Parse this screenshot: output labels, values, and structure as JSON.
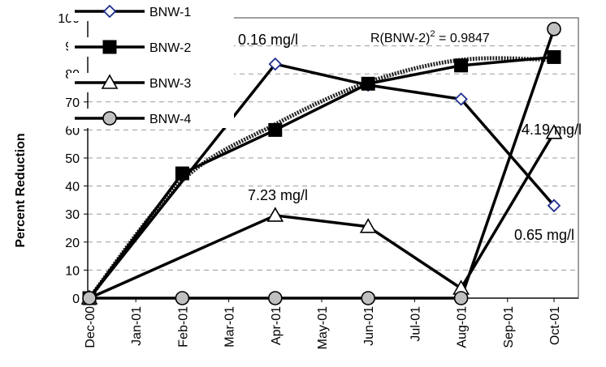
{
  "chart_data": {
    "type": "line",
    "title": "",
    "xlabel": "",
    "ylabel": "Percent Reduction",
    "x_ticks": [
      "Dec-00",
      "Jan-01",
      "Feb-01",
      "Mar-01",
      "Apr-01",
      "May-01",
      "Jun-01",
      "Jul-01",
      "Aug-01",
      "Sep-01",
      "Oct-01"
    ],
    "y_ticks": [
      0,
      10,
      20,
      30,
      40,
      50,
      60,
      70,
      80,
      90,
      100
    ],
    "ylim": [
      0,
      100
    ],
    "grid": "horizontal dashed",
    "legend_position": "top-left",
    "series": [
      {
        "name": "BNW-1",
        "marker": "diamond",
        "color": "#1f2f8f",
        "x": [
          "Dec-00",
          "Apr-01",
          "Jun-01",
          "Aug-01",
          "Oct-01"
        ],
        "values": [
          0,
          83.5,
          76,
          71,
          33
        ]
      },
      {
        "name": "BNW-2",
        "marker": "square",
        "color": "#000000",
        "x": [
          "Dec-00",
          "Feb-01",
          "Apr-01",
          "Jun-01",
          "Aug-01",
          "Oct-01"
        ],
        "values": [
          0,
          44.5,
          60,
          76.5,
          83,
          86
        ]
      },
      {
        "name": "BNW-3",
        "marker": "triangle",
        "color": "#000000",
        "x": [
          "Dec-00",
          "Apr-01",
          "Jun-01",
          "Aug-01",
          "Oct-01"
        ],
        "values": [
          0,
          29.5,
          25.5,
          3.5,
          59
        ]
      },
      {
        "name": "BNW-4",
        "marker": "circle",
        "color": "#999999",
        "x": [
          "Dec-00",
          "Feb-01",
          "Apr-01",
          "Jun-01",
          "Aug-01",
          "Oct-01"
        ],
        "values": [
          0,
          0,
          0,
          0,
          0,
          96
        ]
      }
    ],
    "trendline": {
      "series": "BNW-2",
      "type": "polynomial",
      "x": [
        "Dec-00",
        "Feb-01",
        "Apr-01",
        "Jun-01",
        "Aug-01",
        "Oct-01"
      ],
      "values": [
        0,
        42,
        62,
        77,
        85,
        85
      ]
    },
    "r2_label": {
      "prefix": "R(BNW-2)",
      "sup": "2",
      "suffix": " = 0.9847"
    },
    "annotations": [
      {
        "text": "0.16 mg/l"
      },
      {
        "text": "7.23 mg/l"
      },
      {
        "text": "4.19 mg/l"
      },
      {
        "text": "0.65 mg/l"
      }
    ]
  }
}
